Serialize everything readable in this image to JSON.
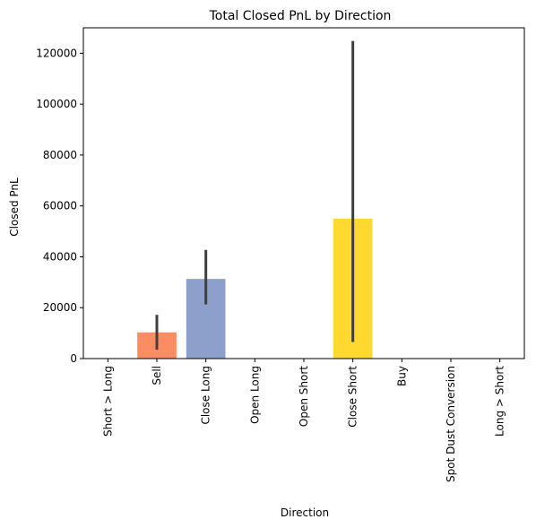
{
  "chart_data": {
    "type": "bar",
    "title": "Total Closed PnL by Direction",
    "xlabel": "Direction",
    "ylabel": "Closed PnL",
    "ylim": [
      0,
      130000
    ],
    "yticks": [
      0,
      20000,
      40000,
      60000,
      80000,
      100000,
      120000
    ],
    "ytick_labels": [
      "0",
      "20000",
      "40000",
      "60000",
      "80000",
      "100000",
      "120000"
    ],
    "categories": [
      "Short > Long",
      "Sell",
      "Close Long",
      "Open Long",
      "Open Short",
      "Close Short",
      "Buy",
      "Spot Dust Conversion",
      "Long > Short"
    ],
    "values": [
      0,
      10300,
      31300,
      0,
      0,
      55000,
      0,
      0,
      0
    ],
    "error_low": [
      0,
      3500,
      21300,
      0,
      0,
      6500,
      0,
      0,
      0
    ],
    "error_high": [
      0,
      17200,
      42700,
      0,
      0,
      124800,
      0,
      0,
      0
    ],
    "colors": [
      "#66c2a5",
      "#fc8d62",
      "#8da0cb",
      "#e78ac3",
      "#a6d854",
      "#ffd92f",
      "#e5c494",
      "#b3b3b3",
      "#66c2a5"
    ],
    "error_color": "#3f3f3f",
    "grid": false,
    "legend": "none"
  }
}
